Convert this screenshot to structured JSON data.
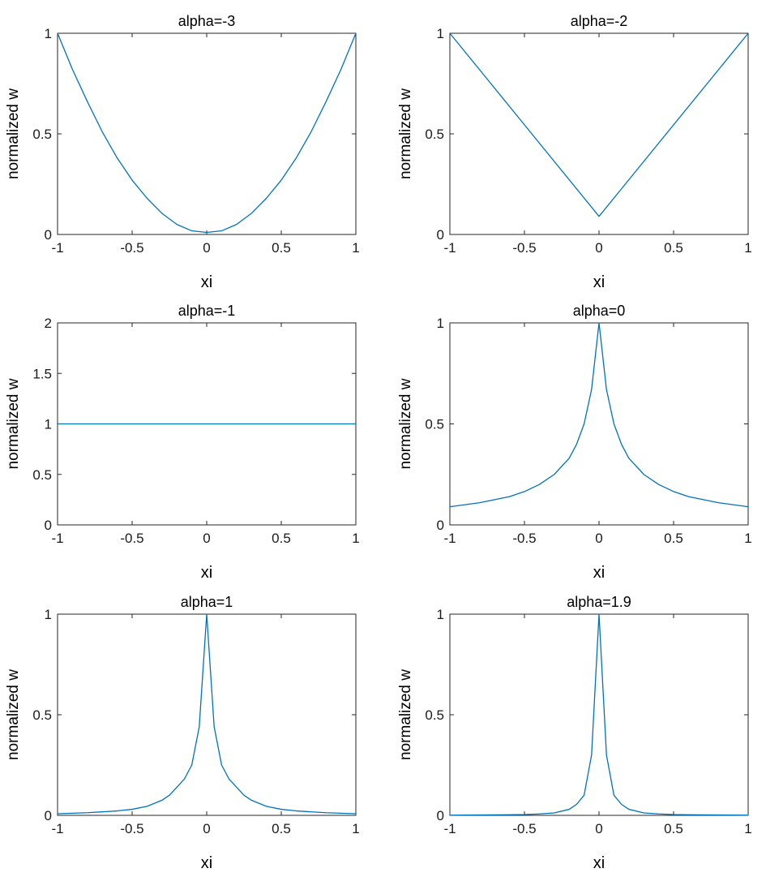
{
  "chart_data": [
    {
      "type": "line",
      "title": "alpha=-3",
      "xlabel": "xi",
      "ylabel": "normalized w",
      "xlim": [
        -1,
        1
      ],
      "ylim": [
        0,
        1
      ],
      "xticks": [
        "-1",
        "-0.5",
        "0",
        "0.5",
        "1"
      ],
      "yticks": [
        "0",
        "0.5",
        "1"
      ],
      "series": [
        {
          "color": "#0072BD",
          "x": [
            -1,
            -0.9,
            -0.8,
            -0.7,
            -0.6,
            -0.5,
            -0.4,
            -0.3,
            -0.2,
            -0.1,
            0,
            0.1,
            0.2,
            0.3,
            0.4,
            0.5,
            0.6,
            0.7,
            0.8,
            0.9,
            1
          ],
          "y": [
            1,
            0.82,
            0.66,
            0.51,
            0.38,
            0.27,
            0.18,
            0.105,
            0.05,
            0.018,
            0.01,
            0.018,
            0.05,
            0.105,
            0.18,
            0.27,
            0.38,
            0.51,
            0.66,
            0.82,
            1
          ]
        }
      ]
    },
    {
      "type": "line",
      "title": "alpha=-2",
      "xlabel": "xi",
      "ylabel": "normalized w",
      "xlim": [
        -1,
        1
      ],
      "ylim": [
        0,
        1
      ],
      "xticks": [
        "-1",
        "-0.5",
        "0",
        "0.5",
        "1"
      ],
      "yticks": [
        "0",
        "0.5",
        "1"
      ],
      "series": [
        {
          "color": "#0072BD",
          "x": [
            -1,
            0,
            1
          ],
          "y": [
            1,
            0.09,
            1
          ]
        }
      ]
    },
    {
      "type": "line",
      "title": "alpha=-1",
      "xlabel": "xi",
      "ylabel": "normalized w",
      "xlim": [
        -1,
        1
      ],
      "ylim": [
        0,
        2
      ],
      "xticks": [
        "-1",
        "-0.5",
        "0",
        "0.5",
        "1"
      ],
      "yticks": [
        "0",
        "0.5",
        "1",
        "1.5",
        "2"
      ],
      "series": [
        {
          "color": "#0072BD",
          "x": [
            -1,
            1
          ],
          "y": [
            1,
            1
          ]
        }
      ]
    },
    {
      "type": "line",
      "title": "alpha=0",
      "xlabel": "xi",
      "ylabel": "normalized w",
      "xlim": [
        -1,
        1
      ],
      "ylim": [
        0,
        1
      ],
      "xticks": [
        "-1",
        "-0.5",
        "0",
        "0.5",
        "1"
      ],
      "yticks": [
        "0",
        "0.5",
        "1"
      ],
      "series": [
        {
          "color": "#0072BD",
          "x": [
            -1,
            -0.8,
            -0.6,
            -0.5,
            -0.4,
            -0.3,
            -0.2,
            -0.15,
            -0.1,
            -0.05,
            0,
            0.05,
            0.1,
            0.15,
            0.2,
            0.3,
            0.4,
            0.5,
            0.6,
            0.8,
            1
          ],
          "y": [
            0.09,
            0.11,
            0.14,
            0.165,
            0.2,
            0.25,
            0.33,
            0.4,
            0.5,
            0.67,
            1,
            0.67,
            0.5,
            0.4,
            0.33,
            0.25,
            0.2,
            0.165,
            0.14,
            0.11,
            0.09
          ]
        }
      ]
    },
    {
      "type": "line",
      "title": "alpha=1",
      "xlabel": "xi",
      "ylabel": "normalized w",
      "xlim": [
        -1,
        1
      ],
      "ylim": [
        0,
        1
      ],
      "xticks": [
        "-1",
        "-0.5",
        "0",
        "0.5",
        "1"
      ],
      "yticks": [
        "0",
        "0.5",
        "1"
      ],
      "series": [
        {
          "color": "#0072BD",
          "x": [
            -1,
            -0.8,
            -0.6,
            -0.5,
            -0.4,
            -0.3,
            -0.25,
            -0.2,
            -0.15,
            -0.1,
            -0.05,
            0,
            0.05,
            0.1,
            0.15,
            0.2,
            0.25,
            0.3,
            0.4,
            0.5,
            0.6,
            0.8,
            1
          ],
          "y": [
            0.008,
            0.013,
            0.022,
            0.03,
            0.045,
            0.075,
            0.1,
            0.14,
            0.18,
            0.25,
            0.44,
            1,
            0.44,
            0.25,
            0.18,
            0.14,
            0.1,
            0.075,
            0.045,
            0.03,
            0.022,
            0.013,
            0.008
          ]
        }
      ]
    },
    {
      "type": "line",
      "title": "alpha=1.9",
      "xlabel": "xi",
      "ylabel": "normalized w",
      "xlim": [
        -1,
        1
      ],
      "ylim": [
        0,
        1
      ],
      "xticks": [
        "-1",
        "-0.5",
        "0",
        "0.5",
        "1"
      ],
      "yticks": [
        "0",
        "0.5",
        "1"
      ],
      "series": [
        {
          "color": "#0072BD",
          "x": [
            -1,
            -0.8,
            -0.6,
            -0.5,
            -0.4,
            -0.3,
            -0.2,
            -0.15,
            -0.1,
            -0.05,
            0,
            0.05,
            0.1,
            0.15,
            0.2,
            0.3,
            0.4,
            0.5,
            0.6,
            0.8,
            1
          ],
          "y": [
            0.001,
            0.002,
            0.003,
            0.004,
            0.007,
            0.012,
            0.03,
            0.055,
            0.1,
            0.3,
            1,
            0.3,
            0.1,
            0.055,
            0.03,
            0.012,
            0.007,
            0.004,
            0.003,
            0.002,
            0.001
          ]
        }
      ]
    }
  ]
}
